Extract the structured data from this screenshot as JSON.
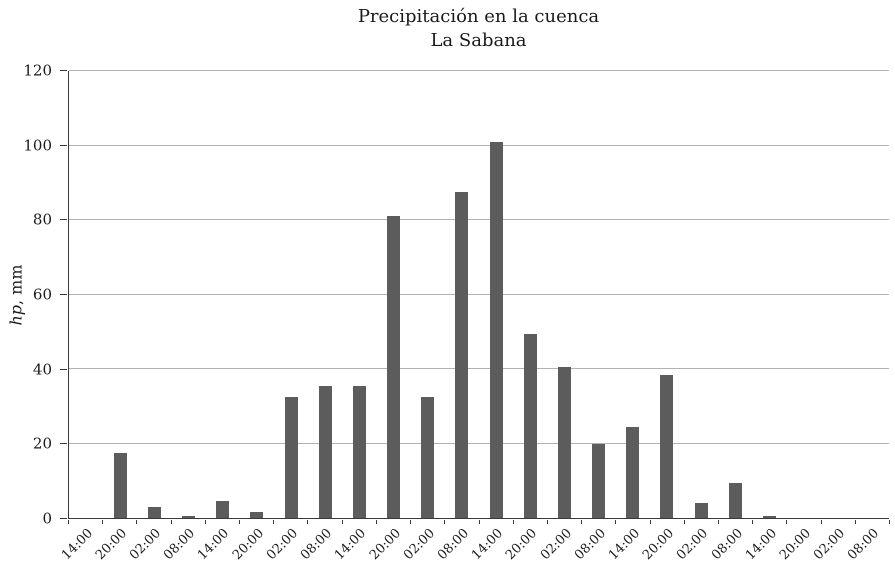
{
  "title": {
    "line1": "Precipitación en la cuenca",
    "line2": "La Sabana"
  },
  "y_axis": {
    "label_italic": "hp",
    "label_rest": ", mm"
  },
  "colors": {
    "bar": "#5c5c5c",
    "gridline": "#b2b2b2",
    "axis": "#3a3a3a"
  },
  "chart_data": {
    "type": "bar",
    "title": "Precipitación en la cuenca La Sabana",
    "xlabel": "",
    "ylabel": "hp, mm",
    "ylim": [
      0,
      120
    ],
    "yticks": [
      0,
      20,
      40,
      60,
      80,
      100,
      120
    ],
    "grid": true,
    "legend": false,
    "categories": [
      "14:00",
      "20:00",
      "02:00",
      "08:00",
      "14:00",
      "20:00",
      "02:00",
      "08:00",
      "14:00",
      "20:00",
      "02:00",
      "08:00",
      "14:00",
      "20:00",
      "02:00",
      "08:00",
      "14:00",
      "20:00",
      "02:00",
      "08:00",
      "14:00",
      "20:00",
      "02:00",
      "08:00"
    ],
    "values": [
      0,
      17.5,
      3,
      0.5,
      4.5,
      1.5,
      32.5,
      35.5,
      35.5,
      81,
      32.5,
      87.5,
      101,
      49.5,
      40.5,
      20,
      24.5,
      38.5,
      4,
      9.5,
      0.5,
      0,
      0,
      0
    ]
  }
}
